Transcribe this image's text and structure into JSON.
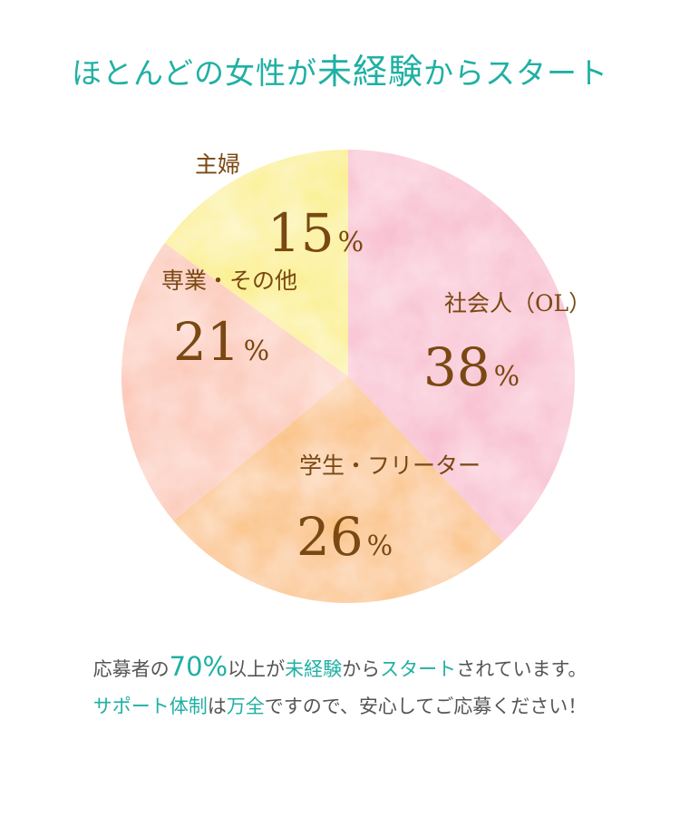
{
  "title": {
    "part1": "ほとんどの女性が",
    "part2": "未経験",
    "part3": "からスタート"
  },
  "colors": {
    "accent": "#1fb0a4",
    "label_text": "#7a4812",
    "body_text": "#555555"
  },
  "chart_data": {
    "type": "pie",
    "unit": "%",
    "slices": [
      {
        "label": "社会人（OL）",
        "value": 38,
        "color": "#f8b9cc"
      },
      {
        "label": "学生・フリーター",
        "value": 26,
        "color": "#fbbd74"
      },
      {
        "label": "専業・その他",
        "value": 21,
        "color": "#fcc4b2"
      },
      {
        "label": "主婦",
        "value": 15,
        "color": "#fbee7a"
      }
    ]
  },
  "note": {
    "line1": {
      "a": "応募者の",
      "b": "70%",
      "c": "以上が",
      "d": "未経験",
      "e": "から",
      "f": "スタート",
      "g": "されています。"
    },
    "line2": {
      "a": "サポート体制",
      "b": "は",
      "c": "万全",
      "d": "ですので、安心してご応募ください！"
    }
  }
}
